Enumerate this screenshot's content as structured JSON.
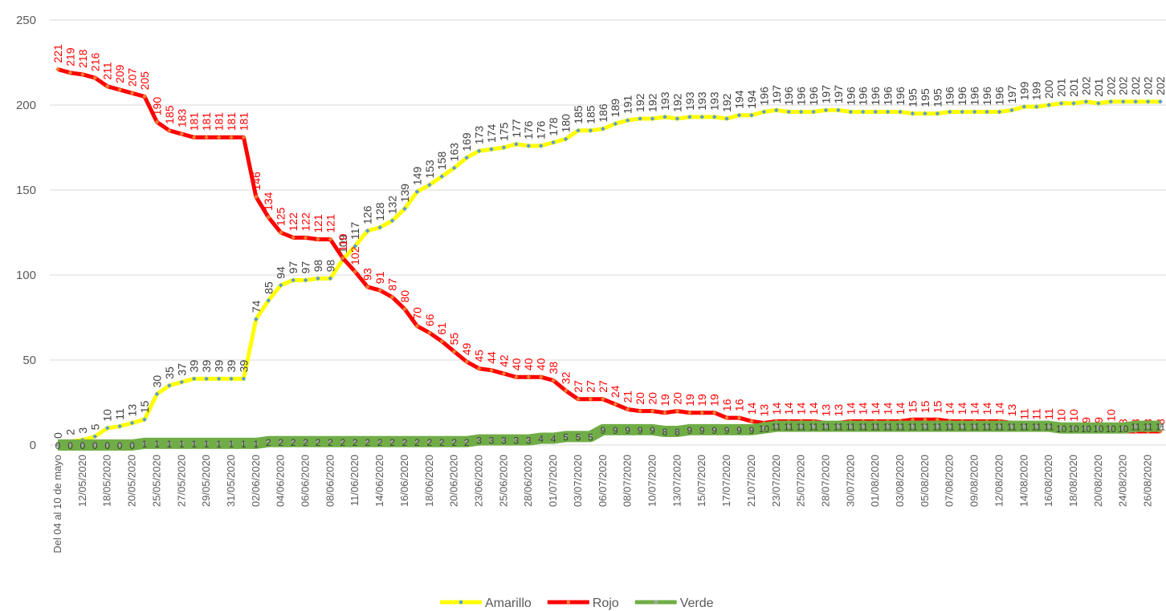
{
  "chart_data": {
    "type": "line",
    "categories": [
      "Del 04 al 10 de mayo",
      null,
      "12/05/2020",
      null,
      "18/05/2020",
      null,
      "20/05/2020",
      null,
      "25/05/2020",
      null,
      "27/05/2020",
      null,
      "29/05/2020",
      null,
      "31/05/2020",
      null,
      "02/06/2020",
      null,
      "04/06/2020",
      null,
      "06/06/2020",
      null,
      "08/06/2020",
      null,
      "11/06/2020",
      null,
      "14/06/2020",
      null,
      "16/06/2020",
      null,
      "18/06/2020",
      null,
      "20/06/2020",
      null,
      "23/06/2020",
      null,
      "25/06/2020",
      null,
      "28/06/2020",
      null,
      "01/07/2020",
      null,
      "03/07/2020",
      null,
      "06/07/2020",
      null,
      "08/07/2020",
      null,
      "10/07/2020",
      null,
      "13/07/2020",
      null,
      "15/07/2020",
      null,
      "17/07/2020",
      null,
      "21/07/2020",
      null,
      "23/07/2020",
      null,
      "25/07/2020",
      null,
      "28/07/2020",
      null,
      "30/07/2020",
      null,
      "01/08/2020",
      null,
      "03/08/2020",
      null,
      "05/08/2020",
      null,
      "07/08/2020",
      null,
      "09/08/2020",
      null,
      "12/08/2020",
      null,
      "14/08/2020",
      null,
      "16/08/2020",
      null,
      "18/08/2020",
      null,
      "20/08/2020",
      null,
      "24/08/2020",
      null,
      "26/08/2020",
      null
    ],
    "series": [
      {
        "name": "Amarillo",
        "color": "#ffff00",
        "marker_color": "#5b9bd5",
        "label_color": "#404040",
        "values": [
          0,
          2,
          3,
          5,
          10,
          11,
          13,
          15,
          30,
          35,
          37,
          39,
          39,
          39,
          39,
          39,
          74,
          85,
          94,
          97,
          97,
          98,
          98,
          109,
          117,
          126,
          128,
          132,
          139,
          149,
          153,
          158,
          163,
          169,
          173,
          174,
          175,
          177,
          176,
          176,
          178,
          180,
          185,
          185,
          186,
          189,
          191,
          192,
          192,
          193,
          192,
          193,
          193,
          193,
          192,
          194,
          194,
          196,
          197,
          196,
          196,
          196,
          197,
          197,
          196,
          196,
          196,
          196,
          196,
          195,
          195,
          195,
          196,
          196,
          196,
          196,
          196,
          197,
          199,
          199,
          200,
          201,
          201,
          202,
          201,
          202,
          202,
          202,
          202,
          202
        ]
      },
      {
        "name": "Rojo",
        "color": "#ff0000",
        "marker_color": "#ed7d31",
        "label_color": "#ff0000",
        "values": [
          221,
          219,
          218,
          216,
          211,
          209,
          207,
          205,
          190,
          185,
          183,
          181,
          181,
          181,
          181,
          181,
          146,
          134,
          125,
          122,
          122,
          121,
          121,
          110,
          102,
          93,
          91,
          87,
          80,
          70,
          66,
          61,
          55,
          49,
          45,
          44,
          42,
          40,
          40,
          40,
          38,
          32,
          27,
          27,
          27,
          24,
          21,
          20,
          20,
          19,
          20,
          19,
          19,
          19,
          16,
          16,
          14,
          13,
          14,
          14,
          14,
          14,
          13,
          13,
          14,
          14,
          14,
          14,
          14,
          15,
          15,
          15,
          14,
          14,
          14,
          14,
          14,
          13,
          11,
          11,
          11,
          10,
          10,
          9,
          9,
          10,
          8,
          8,
          8,
          8
        ]
      },
      {
        "name": "Verde",
        "color": "#70ad47",
        "marker_color": "#a5a5a5",
        "label_color": "#404040",
        "values": [
          0,
          0,
          0,
          0,
          0,
          0,
          0,
          1,
          1,
          1,
          1,
          1,
          1,
          1,
          1,
          1,
          1,
          2,
          2,
          2,
          2,
          2,
          2,
          2,
          2,
          2,
          2,
          2,
          2,
          2,
          2,
          2,
          2,
          2,
          3,
          3,
          3,
          3,
          3,
          4,
          4,
          5,
          5,
          5,
          9,
          9,
          9,
          9,
          9,
          8,
          8,
          9,
          9,
          9,
          9,
          9,
          9,
          10,
          11,
          11,
          11,
          11,
          11,
          11,
          11,
          11,
          11,
          11,
          11,
          11,
          11,
          11,
          11,
          11,
          11,
          11,
          11,
          11,
          11,
          11,
          11,
          10,
          10,
          10,
          10,
          10,
          10,
          11,
          11,
          11
        ]
      }
    ],
    "ylim": [
      0,
      250
    ],
    "yticks": [
      0,
      50,
      100,
      150,
      200,
      250
    ],
    "grid": true,
    "legend": "bottom"
  }
}
